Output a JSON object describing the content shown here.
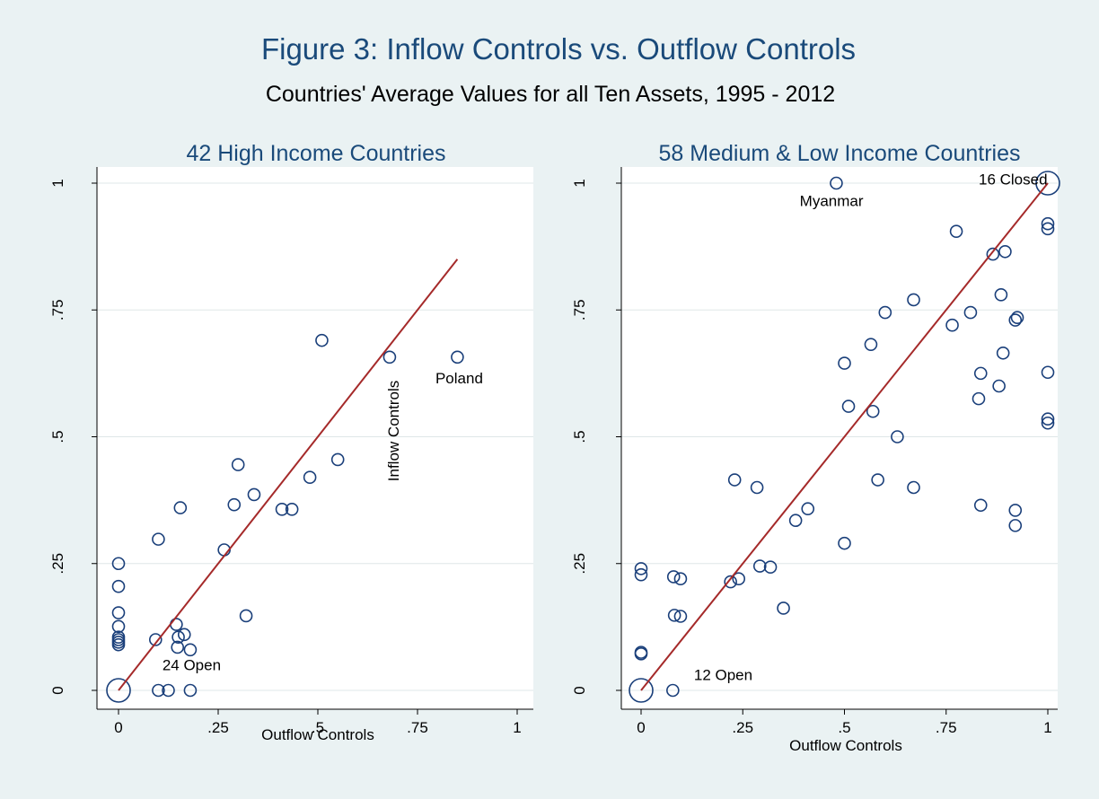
{
  "title": "Figure 3: Inflow Controls vs. Outflow Controls",
  "subtitle": "Countries' Average Values for all Ten Assets, 1995 - 2012",
  "colors": {
    "background": "#eaf2f3",
    "title": "#1a4a7a",
    "marker": "#1a3f7a",
    "fit_line": "#a52a2a",
    "grid": "#dfe7e8"
  },
  "chart_data": [
    {
      "type": "scatter",
      "title": "42 High Income Countries",
      "xlabel": "Outflow Controls",
      "ylabel": "Inflow Controls",
      "xlim": [
        0,
        1
      ],
      "ylim": [
        0,
        1
      ],
      "x_ticks": [
        "0",
        ".25",
        ".5",
        ".75",
        "1"
      ],
      "y_ticks": [
        "0",
        ".25",
        ".5",
        ".75",
        "1"
      ],
      "grid": true,
      "fit_line": {
        "x": [
          0,
          0.85
        ],
        "y": [
          0,
          0.85
        ]
      },
      "points": [
        {
          "x": 0,
          "y": 0.25
        },
        {
          "x": 0,
          "y": 0.205
        },
        {
          "x": 0,
          "y": 0.153
        },
        {
          "x": 0,
          "y": 0.126
        },
        {
          "x": 0,
          "y": 0.105
        },
        {
          "x": 0,
          "y": 0.1
        },
        {
          "x": 0,
          "y": 0.095
        },
        {
          "x": 0,
          "y": 0.09
        },
        {
          "x": 0.1,
          "y": 0.298
        },
        {
          "x": 0.093,
          "y": 0.1
        },
        {
          "x": 0.1,
          "y": 0
        },
        {
          "x": 0.125,
          "y": 0
        },
        {
          "x": 0.18,
          "y": 0
        },
        {
          "x": 0.145,
          "y": 0.13
        },
        {
          "x": 0.15,
          "y": 0.105
        },
        {
          "x": 0.165,
          "y": 0.11
        },
        {
          "x": 0.148,
          "y": 0.085
        },
        {
          "x": 0.18,
          "y": 0.08
        },
        {
          "x": 0.155,
          "y": 0.36
        },
        {
          "x": 0.265,
          "y": 0.277
        },
        {
          "x": 0.29,
          "y": 0.366
        },
        {
          "x": 0.3,
          "y": 0.445
        },
        {
          "x": 0.32,
          "y": 0.147
        },
        {
          "x": 0.34,
          "y": 0.386
        },
        {
          "x": 0.41,
          "y": 0.357
        },
        {
          "x": 0.435,
          "y": 0.357
        },
        {
          "x": 0.48,
          "y": 0.42
        },
        {
          "x": 0.51,
          "y": 0.69
        },
        {
          "x": 0.55,
          "y": 0.455
        },
        {
          "x": 0.68,
          "y": 0.657
        },
        {
          "x": 0.85,
          "y": 0.657
        }
      ],
      "large_points": [
        {
          "x": 0,
          "y": 0
        }
      ],
      "annotations": [
        {
          "text": "24 Open",
          "x": 0.11,
          "y": 0.04
        },
        {
          "text": "Poland",
          "x": 0.795,
          "y": 0.605
        }
      ]
    },
    {
      "type": "scatter",
      "title": "58 Medium & Low Income Countries",
      "xlabel": "Outflow Controls",
      "xlim": [
        0,
        1
      ],
      "ylim": [
        0,
        1
      ],
      "x_ticks": [
        "0",
        ".25",
        ".5",
        ".75",
        "1"
      ],
      "y_ticks": [
        "0",
        ".25",
        ".5",
        ".75",
        "1"
      ],
      "grid": true,
      "fit_line": {
        "x": [
          0,
          1
        ],
        "y": [
          0,
          1
        ]
      },
      "points": [
        {
          "x": 0,
          "y": 0.24
        },
        {
          "x": 0,
          "y": 0.228
        },
        {
          "x": 0,
          "y": 0.075
        },
        {
          "x": 0,
          "y": 0.072
        },
        {
          "x": 0.078,
          "y": 0
        },
        {
          "x": 0.08,
          "y": 0.224
        },
        {
          "x": 0.097,
          "y": 0.22
        },
        {
          "x": 0.082,
          "y": 0.148
        },
        {
          "x": 0.097,
          "y": 0.146
        },
        {
          "x": 0.22,
          "y": 0.214
        },
        {
          "x": 0.24,
          "y": 0.22
        },
        {
          "x": 0.23,
          "y": 0.415
        },
        {
          "x": 0.285,
          "y": 0.4
        },
        {
          "x": 0.292,
          "y": 0.245
        },
        {
          "x": 0.318,
          "y": 0.243
        },
        {
          "x": 0.35,
          "y": 0.162
        },
        {
          "x": 0.38,
          "y": 0.335
        },
        {
          "x": 0.41,
          "y": 0.358
        },
        {
          "x": 0.48,
          "y": 1.0
        },
        {
          "x": 0.5,
          "y": 0.645
        },
        {
          "x": 0.5,
          "y": 0.29
        },
        {
          "x": 0.51,
          "y": 0.56
        },
        {
          "x": 0.565,
          "y": 0.682
        },
        {
          "x": 0.57,
          "y": 0.55
        },
        {
          "x": 0.582,
          "y": 0.415
        },
        {
          "x": 0.6,
          "y": 0.745
        },
        {
          "x": 0.63,
          "y": 0.5
        },
        {
          "x": 0.67,
          "y": 0.77
        },
        {
          "x": 0.67,
          "y": 0.4
        },
        {
          "x": 0.765,
          "y": 0.72
        },
        {
          "x": 0.775,
          "y": 0.905
        },
        {
          "x": 0.81,
          "y": 0.745
        },
        {
          "x": 0.83,
          "y": 0.575
        },
        {
          "x": 0.835,
          "y": 0.625
        },
        {
          "x": 0.835,
          "y": 0.365
        },
        {
          "x": 0.865,
          "y": 0.86
        },
        {
          "x": 0.88,
          "y": 0.6
        },
        {
          "x": 0.885,
          "y": 0.78
        },
        {
          "x": 0.89,
          "y": 0.665
        },
        {
          "x": 0.895,
          "y": 0.865
        },
        {
          "x": 0.92,
          "y": 0.73
        },
        {
          "x": 0.925,
          "y": 0.735
        },
        {
          "x": 0.92,
          "y": 0.355
        },
        {
          "x": 0.92,
          "y": 0.325
        },
        {
          "x": 1.0,
          "y": 0.92
        },
        {
          "x": 1.0,
          "y": 0.91
        },
        {
          "x": 1.0,
          "y": 0.627
        },
        {
          "x": 1.0,
          "y": 0.535
        },
        {
          "x": 1.0,
          "y": 0.527
        }
      ],
      "large_points": [
        {
          "x": 0,
          "y": 0
        },
        {
          "x": 1,
          "y": 1
        }
      ],
      "annotations": [
        {
          "text": "Myanmar",
          "x": 0.39,
          "y": 0.955
        },
        {
          "text": "16 Closed",
          "x": 0.83,
          "y": 0.997
        },
        {
          "text": "12 Open",
          "x": 0.13,
          "y": 0.02
        }
      ]
    }
  ]
}
